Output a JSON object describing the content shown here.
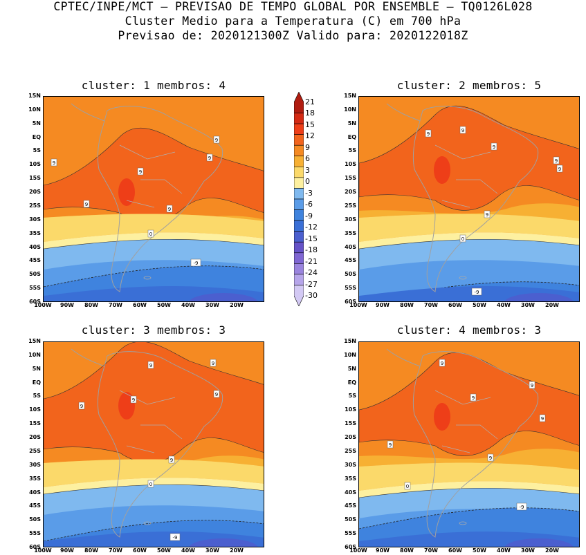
{
  "header": {
    "line1": "CPTEC/INPE/MCT — PREVISAO DE TEMPO GLOBAL POR ENSEMBLE — TQ0126L028",
    "line2": "Cluster Medio para a Temperatura (C) em 700 hPa",
    "line3": "Previsao de: 2020121300Z   Valido para: 2020122018Z"
  },
  "panels": [
    {
      "title": "cluster: 1  membros: 4",
      "labels": [
        "9",
        "9",
        "9",
        "9",
        "9",
        "9",
        "0",
        "-9"
      ]
    },
    {
      "title": "cluster: 2  membros: 5",
      "labels": [
        "9",
        "9",
        "9",
        "9",
        "9",
        "9",
        "0",
        "-9"
      ]
    },
    {
      "title": "cluster: 3  membros: 3",
      "labels": [
        "9",
        "9",
        "9",
        "9",
        "9",
        "9",
        "0",
        "-9"
      ]
    },
    {
      "title": "cluster: 4  membros: 3",
      "labels": [
        "9",
        "9",
        "9",
        "9",
        "9",
        "9",
        "0",
        "-9"
      ]
    }
  ],
  "lat_ticks": [
    "15N",
    "10N",
    "5N",
    "EQ",
    "5S",
    "10S",
    "15S",
    "20S",
    "25S",
    "30S",
    "35S",
    "40S",
    "45S",
    "50S",
    "55S",
    "60S"
  ],
  "lon_ticks": [
    "100W",
    "90W",
    "80W",
    "70W",
    "60W",
    "50W",
    "40W",
    "30W",
    "20W"
  ],
  "colorbar": {
    "levels": [
      "21",
      "18",
      "15",
      "12",
      "9",
      "6",
      "3",
      "0",
      "-3",
      "-6",
      "-9",
      "-12",
      "-15",
      "-18",
      "-21",
      "-24",
      "-27",
      "-30"
    ],
    "colors": [
      "#b01c10",
      "#d42a14",
      "#ee3e18",
      "#f2641c",
      "#f58a22",
      "#f7b033",
      "#fbd96a",
      "#fdf0a0",
      "#7fb9ef",
      "#5a9ce8",
      "#3f83de",
      "#3a6fd6",
      "#4b5fcf",
      "#6552c8",
      "#7f66d3",
      "#9a84de",
      "#b6a5ea",
      "#d3c9f4"
    ]
  }
}
